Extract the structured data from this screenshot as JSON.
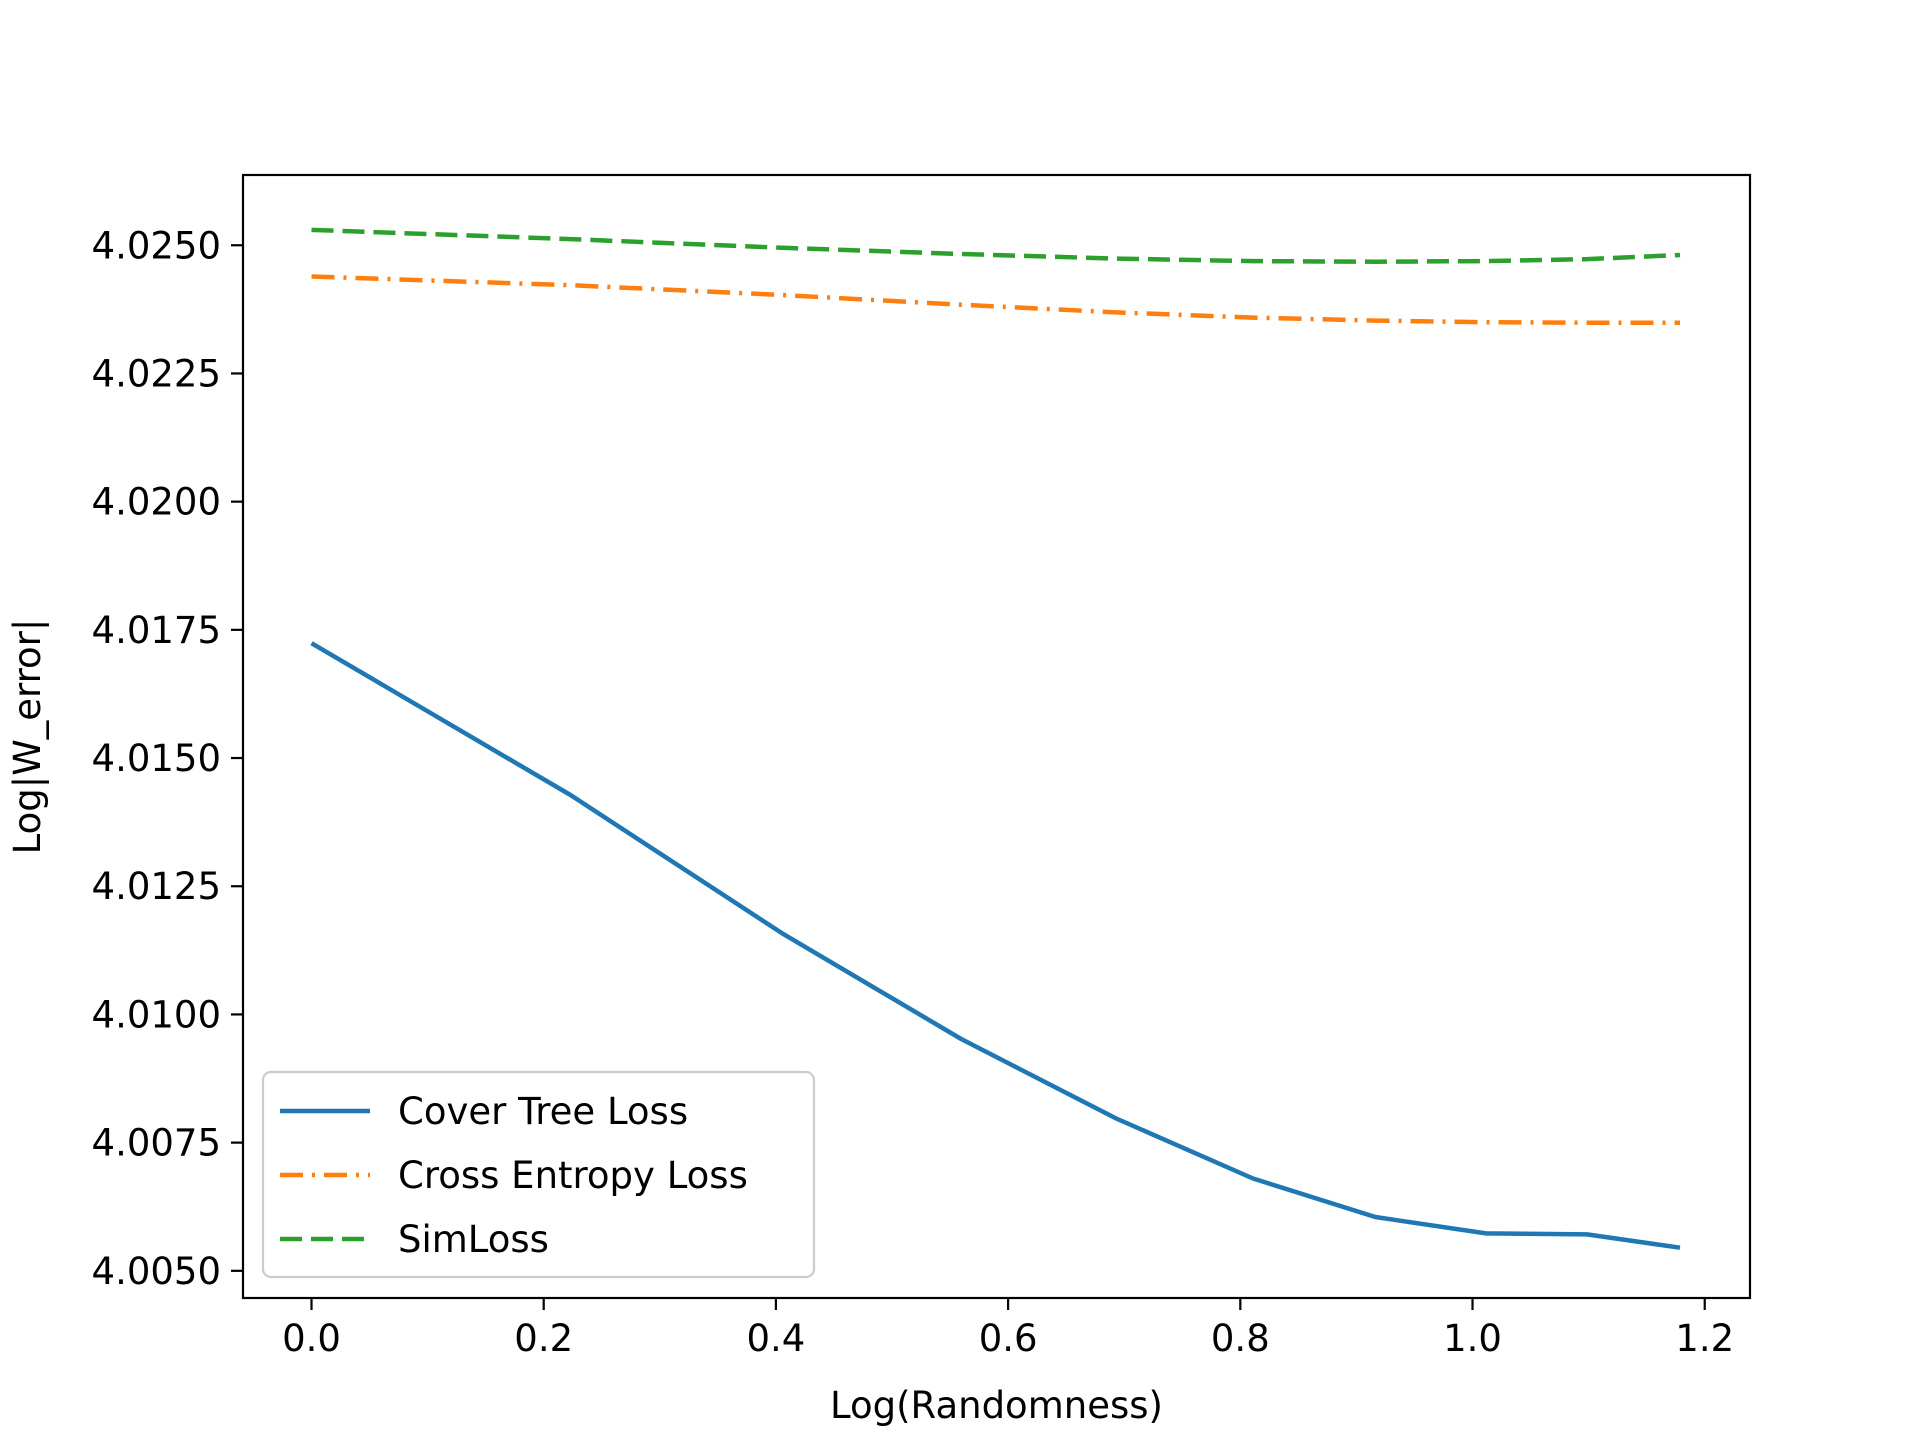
{
  "chart_data": {
    "type": "line",
    "title": "",
    "xlabel": "Log(Randomness)",
    "ylabel": "Log|W_error|",
    "xlim": [
      -0.059,
      1.239
    ],
    "ylim": [
      4.00447,
      4.02637
    ],
    "xticks": [
      0.0,
      0.2,
      0.4,
      0.6,
      0.8,
      1.0,
      1.2
    ],
    "xtick_labels": [
      "0.0",
      "0.2",
      "0.4",
      "0.6",
      "0.8",
      "1.0",
      "1.2"
    ],
    "yticks": [
      4.005,
      4.0075,
      4.01,
      4.0125,
      4.015,
      4.0175,
      4.02,
      4.0225,
      4.025
    ],
    "ytick_labels": [
      "4.0050",
      "4.0075",
      "4.0100",
      "4.0125",
      "4.0150",
      "4.0175",
      "4.0200",
      "4.0225",
      "4.0250"
    ],
    "grid": false,
    "legend_position": "lower-left",
    "x": [
      0.0,
      0.2231,
      0.4055,
      0.5596,
      0.6931,
      0.8109,
      0.9163,
      1.0116,
      1.0986,
      1.1787
    ],
    "series": [
      {
        "name": "Cover Tree Loss",
        "color": "#1f77b4",
        "linestyle": "solid",
        "values": [
          4.01724,
          4.01428,
          4.01158,
          4.00952,
          4.00797,
          4.0068,
          4.00605,
          4.00573,
          4.00571,
          4.00545
        ]
      },
      {
        "name": "Cross Entropy Loss",
        "color": "#ff7f0e",
        "linestyle": "dashdot",
        "values": [
          4.02439,
          4.02422,
          4.02403,
          4.02384,
          4.02369,
          4.02359,
          4.02353,
          4.0235,
          4.02349,
          4.02349
        ]
      },
      {
        "name": "SimLoss",
        "color": "#2ca02c",
        "linestyle": "dashed",
        "values": [
          4.0253,
          4.02512,
          4.02495,
          4.02483,
          4.02474,
          4.02469,
          4.02468,
          4.02469,
          4.02473,
          4.02481
        ]
      }
    ]
  }
}
